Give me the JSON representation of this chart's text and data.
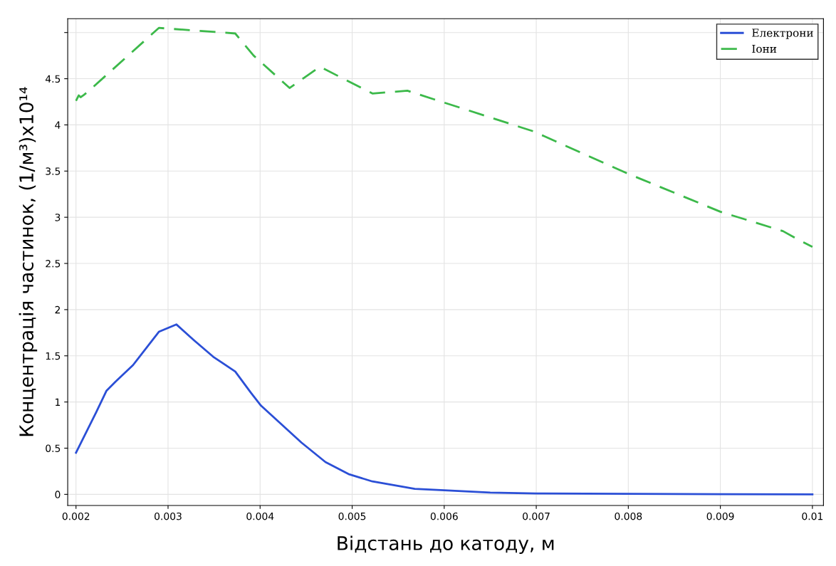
{
  "chart_data": {
    "type": "line",
    "xlabel": "Відстань до катоду, м",
    "ylabel": "Концентрація частинок, (1/м³)x10¹⁴",
    "xlim": [
      0.00191,
      0.01012
    ],
    "ylim": [
      -0.12,
      5.15
    ],
    "xticks": [
      0.002,
      0.003,
      0.004,
      0.005,
      0.006,
      0.007,
      0.008,
      0.009,
      0.01
    ],
    "yticks": [
      0,
      0.5,
      1,
      1.5,
      2,
      2.5,
      3,
      3.5,
      4,
      4.5,
      {
        "value": 5,
        "label": null
      }
    ],
    "grid": true,
    "legend": "top right",
    "series": [
      {
        "name": "Електрони",
        "color": "#2b4fd6",
        "line_style": "solid",
        "x": [
          0.002,
          0.00222,
          0.00233,
          0.00243,
          0.00262,
          0.0029,
          0.00309,
          0.00328,
          0.00349,
          0.00373,
          0.0039,
          0.00401,
          0.00445,
          0.00471,
          0.00496,
          0.00522,
          0.00568,
          0.006,
          0.0065,
          0.007,
          0.008,
          0.009,
          0.01
        ],
        "values": [
          0.45,
          0.89,
          1.12,
          1.22,
          1.4,
          1.76,
          1.84,
          1.67,
          1.49,
          1.33,
          1.1,
          0.96,
          0.56,
          0.35,
          0.22,
          0.14,
          0.06,
          0.045,
          0.02,
          0.01,
          0.005,
          0.002,
          0
        ]
      },
      {
        "name": "Іони",
        "color": "#3cb94a",
        "line_style": "dashed",
        "x": [
          0.002,
          0.00203,
          0.00205,
          0.00208,
          0.00213,
          0.0029,
          0.00373,
          0.00393,
          0.00432,
          0.00465,
          0.00522,
          0.0056,
          0.00697,
          0.008,
          0.009,
          0.00968,
          0.00988,
          0.01
        ],
        "values": [
          4.26,
          4.32,
          4.3,
          4.32,
          4.36,
          5.05,
          4.99,
          4.75,
          4.4,
          4.63,
          4.34,
          4.37,
          3.93,
          3.47,
          3.06,
          2.85,
          2.74,
          2.68
        ]
      }
    ]
  }
}
